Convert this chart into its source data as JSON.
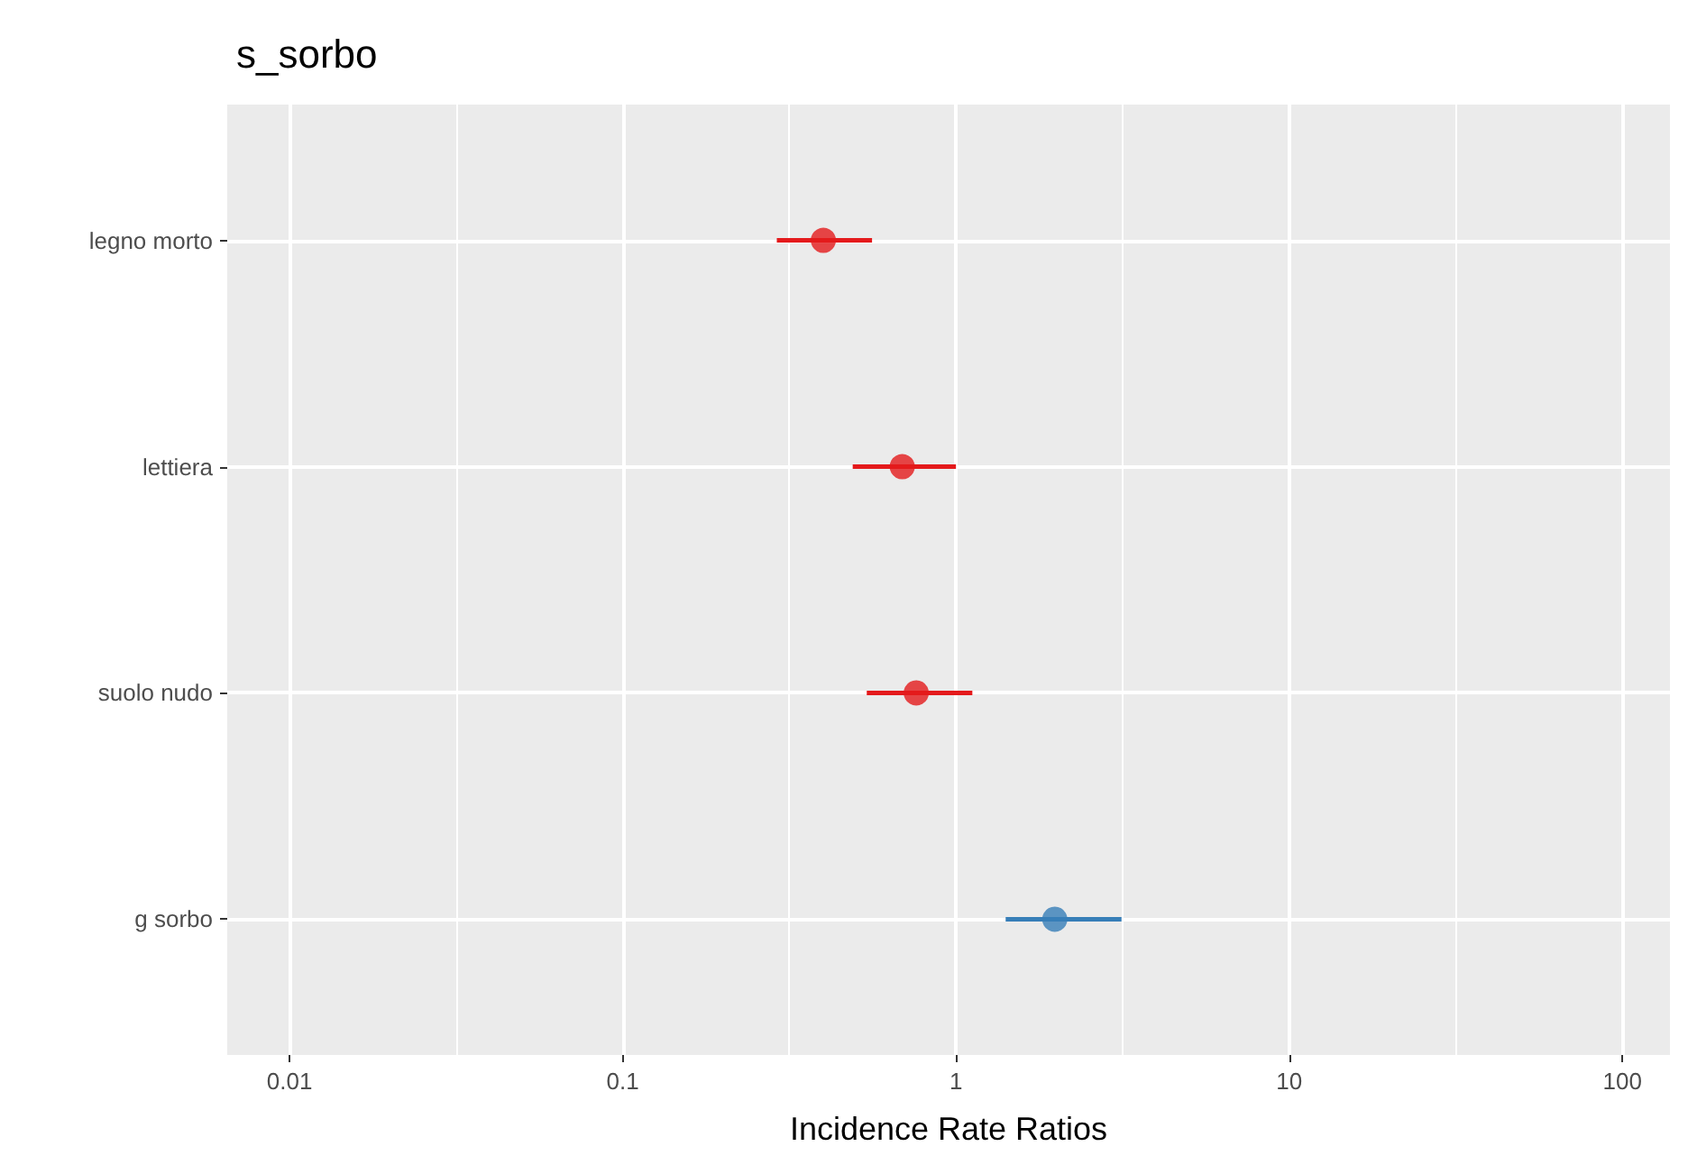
{
  "chart_data": {
    "type": "scatter",
    "orientation": "horizontal",
    "title": "s_sorbo",
    "xlabel": "Incidence Rate Ratios",
    "categories": [
      "legno morto",
      "lettiera",
      "suolo nudo",
      "g sorbo"
    ],
    "values": [
      0.4,
      0.69,
      0.76,
      1.98
    ],
    "colors": [
      "#e41a1c",
      "#e41a1c",
      "#e41a1c",
      "#377eb8"
    ],
    "errors": [
      [
        0.29,
        0.56
      ],
      [
        0.49,
        1.0
      ],
      [
        0.54,
        1.12
      ],
      [
        1.41,
        3.14
      ]
    ],
    "log": "x",
    "xlim": [
      0.0065,
      139
    ],
    "xticks": [
      0.01,
      0.1,
      1,
      10,
      100
    ],
    "grid": true,
    "marker": "circle"
  }
}
